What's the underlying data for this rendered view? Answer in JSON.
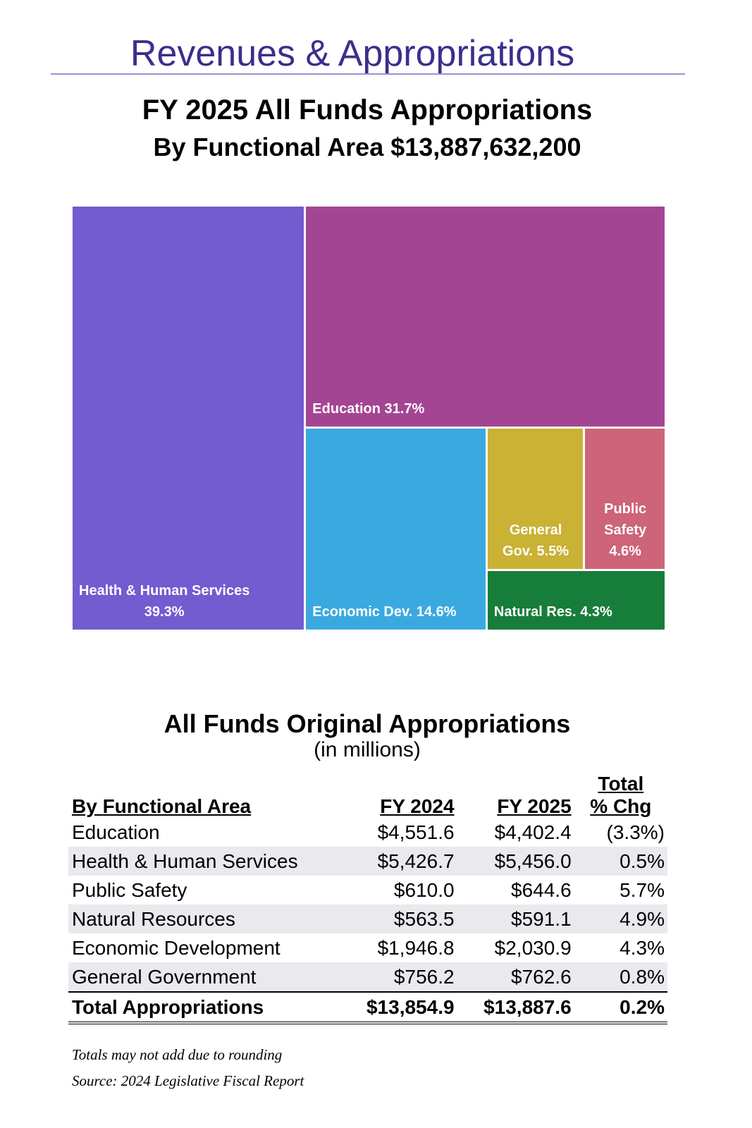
{
  "header": {
    "title": "Revenues & Appropriations"
  },
  "chart_data": {
    "type": "treemap",
    "title": "FY 2025 All Funds Appropriations",
    "subtitle": "By Functional Area $13,887,632,200",
    "categories": [
      "Health & Human Services",
      "Education",
      "Economic Dev.",
      "General Gov.",
      "Public Safety",
      "Natural Res."
    ],
    "values": [
      39.3,
      31.7,
      14.6,
      5.5,
      4.6,
      4.3
    ],
    "value_labels": [
      "39.3%",
      "31.7%",
      "14.6%",
      "5.5%",
      "4.6%",
      "4.3%"
    ],
    "colors": [
      "#735bd0",
      "#a44594",
      "#3aa9e0",
      "#c9b234",
      "#cd6478",
      "#177d3a"
    ]
  },
  "table": {
    "title": "All Funds Original Appropriations",
    "subtitle": "(in millions)",
    "column_group": "Total",
    "columns": [
      "By Functional Area",
      "FY 2024",
      "FY 2025",
      "% Chg"
    ],
    "rows": [
      [
        "Education",
        "$4,551.6",
        "$4,402.4",
        "(3.3%)"
      ],
      [
        "Health & Human Services",
        "$5,426.7",
        "$5,456.0",
        "0.5%"
      ],
      [
        "Public Safety",
        "$610.0",
        "$644.6",
        "5.7%"
      ],
      [
        "Natural Resources",
        "$563.5",
        "$591.1",
        "4.9%"
      ],
      [
        "Economic Development",
        "$1,946.8",
        "$2,030.9",
        "4.3%"
      ],
      [
        "General Government",
        "$756.2",
        "$762.6",
        "0.8%"
      ]
    ],
    "total": [
      "Total Appropriations",
      "$13,854.9",
      "$13,887.6",
      "0.2%"
    ]
  },
  "notes": [
    "Totals may not add due to rounding",
    "Source: 2024 Legislative Fiscal Report"
  ]
}
